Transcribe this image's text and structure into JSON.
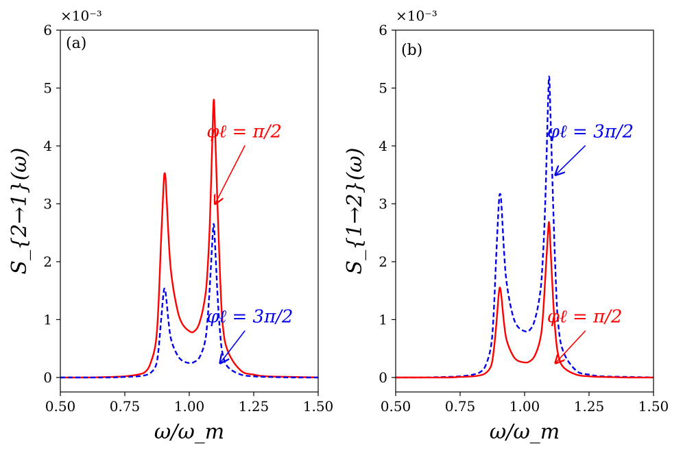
{
  "chart_data": [
    {
      "type": "line",
      "panel_label": "(a)",
      "multiplier_label": "×10⁻³",
      "xlabel": "ω/ω_m",
      "ylabel": "S_{2→1}(ω)",
      "xlim": [
        0.5,
        1.5
      ],
      "ylim": [
        -0.25,
        6
      ],
      "xticks": [
        0.5,
        0.75,
        1.0,
        1.25,
        1.5
      ],
      "xtick_labels": [
        "0.50",
        "0.75",
        "1.00",
        "1.25",
        "1.50"
      ],
      "yticks": [
        0,
        1,
        2,
        3,
        4,
        5,
        6
      ],
      "ytick_labels": [
        "0",
        "1",
        "2",
        "3",
        "4",
        "5",
        "6"
      ],
      "series": [
        {
          "name": "φℓ = π/2",
          "color": "#ff0000",
          "style": "solid",
          "x": [
            0.5,
            0.6,
            0.7,
            0.75,
            0.8,
            0.83,
            0.85,
            0.87,
            0.88,
            0.89,
            0.9,
            0.905,
            0.91,
            0.92,
            0.93,
            0.95,
            0.97,
            1.0,
            1.02,
            1.04,
            1.06,
            1.07,
            1.08,
            1.09,
            1.095,
            1.1,
            1.11,
            1.12,
            1.13,
            1.15,
            1.2,
            1.25,
            1.3,
            1.4,
            1.5
          ],
          "y": [
            0.0,
            0.0,
            0.01,
            0.02,
            0.05,
            0.1,
            0.25,
            0.6,
            1.2,
            2.3,
            3.3,
            3.53,
            3.3,
            2.4,
            1.8,
            1.25,
            0.95,
            0.8,
            0.8,
            0.95,
            1.35,
            1.8,
            2.7,
            4.2,
            4.8,
            4.3,
            2.9,
            1.7,
            0.9,
            0.45,
            0.12,
            0.05,
            0.02,
            0.01,
            0.0
          ]
        },
        {
          "name": "φℓ = 3π/2",
          "color": "#0000ee",
          "style": "dashed",
          "x": [
            0.5,
            0.6,
            0.7,
            0.75,
            0.8,
            0.83,
            0.85,
            0.87,
            0.88,
            0.89,
            0.9,
            0.905,
            0.91,
            0.92,
            0.93,
            0.95,
            0.97,
            1.0,
            1.02,
            1.04,
            1.06,
            1.07,
            1.08,
            1.09,
            1.095,
            1.1,
            1.11,
            1.12,
            1.13,
            1.15,
            1.2,
            1.25,
            1.3,
            1.4,
            1.5
          ],
          "y": [
            0.0,
            0.0,
            0.0,
            0.01,
            0.02,
            0.04,
            0.08,
            0.2,
            0.45,
            0.95,
            1.45,
            1.53,
            1.4,
            0.95,
            0.65,
            0.42,
            0.3,
            0.25,
            0.27,
            0.35,
            0.6,
            0.95,
            1.6,
            2.4,
            2.65,
            2.3,
            1.4,
            0.75,
            0.4,
            0.18,
            0.05,
            0.02,
            0.01,
            0.0,
            0.0
          ]
        }
      ],
      "annotations": [
        {
          "text": "φℓ = π/2",
          "color": "#ff0000",
          "xy": [
            1.1,
            3.0
          ],
          "xytext": [
            1.2,
            4.15
          ]
        },
        {
          "text": "φℓ = 3π/2",
          "color": "#0000ee",
          "xy": [
            1.12,
            0.25
          ],
          "xytext": [
            1.2,
            0.95
          ]
        }
      ]
    },
    {
      "type": "line",
      "panel_label": "(b)",
      "multiplier_label": "×10⁻³",
      "xlabel": "ω/ω_m",
      "ylabel": "S_{1→2}(ω)",
      "xlim": [
        0.5,
        1.5
      ],
      "ylim": [
        -0.25,
        6
      ],
      "xticks": [
        0.5,
        0.75,
        1.0,
        1.25,
        1.5
      ],
      "xtick_labels": [
        "0.50",
        "0.75",
        "1.00",
        "1.25",
        "1.50"
      ],
      "yticks": [
        0,
        1,
        2,
        3,
        4,
        5,
        6
      ],
      "ytick_labels": [
        "0",
        "1",
        "2",
        "3",
        "4",
        "5",
        "6"
      ],
      "series": [
        {
          "name": "φℓ = 3π/2",
          "color": "#0000ee",
          "style": "dashed",
          "x": [
            0.5,
            0.6,
            0.7,
            0.75,
            0.8,
            0.83,
            0.85,
            0.87,
            0.88,
            0.89,
            0.9,
            0.905,
            0.91,
            0.92,
            0.93,
            0.95,
            0.97,
            1.0,
            1.02,
            1.04,
            1.06,
            1.07,
            1.08,
            1.09,
            1.095,
            1.1,
            1.11,
            1.12,
            1.13,
            1.15,
            1.2,
            1.25,
            1.3,
            1.4,
            1.5
          ],
          "y": [
            0.0,
            0.0,
            0.01,
            0.02,
            0.05,
            0.1,
            0.22,
            0.55,
            1.1,
            2.1,
            3.0,
            3.17,
            3.0,
            2.2,
            1.65,
            1.15,
            0.9,
            0.8,
            0.82,
            1.0,
            1.45,
            2.0,
            3.0,
            4.6,
            5.2,
            4.6,
            3.1,
            1.8,
            0.95,
            0.45,
            0.12,
            0.05,
            0.02,
            0.01,
            0.0
          ]
        },
        {
          "name": "φℓ = π/2",
          "color": "#ff0000",
          "style": "solid",
          "x": [
            0.5,
            0.6,
            0.7,
            0.75,
            0.8,
            0.83,
            0.85,
            0.87,
            0.88,
            0.89,
            0.9,
            0.905,
            0.91,
            0.92,
            0.93,
            0.95,
            0.97,
            1.0,
            1.02,
            1.04,
            1.06,
            1.07,
            1.08,
            1.09,
            1.095,
            1.1,
            1.11,
            1.12,
            1.13,
            1.15,
            1.2,
            1.25,
            1.3,
            1.4,
            1.5
          ],
          "y": [
            0.0,
            0.0,
            0.0,
            0.01,
            0.02,
            0.04,
            0.08,
            0.2,
            0.45,
            0.9,
            1.45,
            1.55,
            1.4,
            0.95,
            0.65,
            0.42,
            0.3,
            0.26,
            0.28,
            0.38,
            0.65,
            1.0,
            1.7,
            2.45,
            2.68,
            2.3,
            1.4,
            0.75,
            0.4,
            0.18,
            0.05,
            0.02,
            0.01,
            0.0,
            0.0
          ]
        }
      ],
      "annotations": [
        {
          "text": "φℓ = 3π/2",
          "color": "#0000ee",
          "xy": [
            1.12,
            3.5
          ],
          "xytext": [
            1.22,
            4.15
          ]
        },
        {
          "text": "φℓ = π/2",
          "color": "#ff0000",
          "xy": [
            1.12,
            0.25
          ],
          "xytext": [
            1.22,
            0.95
          ]
        }
      ]
    }
  ]
}
